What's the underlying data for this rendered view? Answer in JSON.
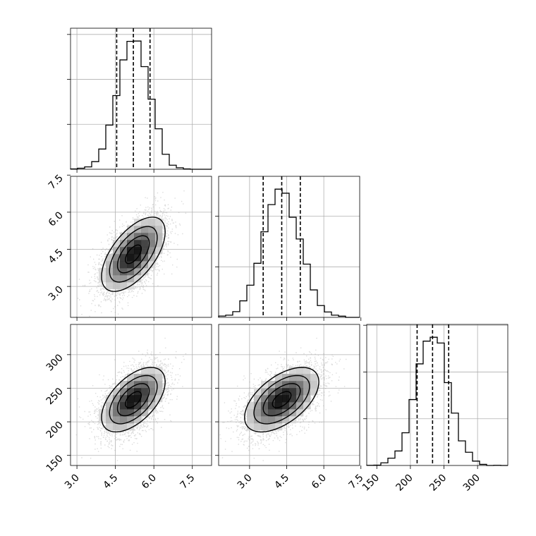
{
  "chart_data": {
    "type": "corner",
    "parameters": [
      {
        "ticks": [
          3.0,
          4.5,
          6.0,
          7.5
        ],
        "tick_labels": [
          "3.0",
          "4.5",
          "6.0",
          "7.5"
        ],
        "range": [
          2.75,
          8.25
        ],
        "mean": 5.2,
        "std": 0.62,
        "quantiles": [
          4.55,
          5.2,
          5.85
        ]
      },
      {
        "ticks": [
          3.0,
          4.5,
          6.0,
          7.5
        ],
        "tick_labels": [
          "3.0",
          "4.5",
          "6.0",
          "7.5"
        ],
        "range": [
          1.75,
          7.45
        ],
        "mean": 4.3,
        "std": 0.75,
        "quantiles": [
          3.55,
          4.3,
          5.05
        ]
      },
      {
        "ticks": [
          150,
          200,
          250,
          300
        ],
        "tick_labels": [
          "150",
          "200",
          "250",
          "300"
        ],
        "range": [
          135,
          345
        ],
        "mean": 233,
        "std": 24,
        "quantiles": [
          210,
          233,
          257
        ]
      }
    ],
    "correlations": {
      "0-1": 0.6,
      "0-2": 0.55,
      "1-2": 0.55
    },
    "histogram_bins": 20,
    "grid": true
  }
}
